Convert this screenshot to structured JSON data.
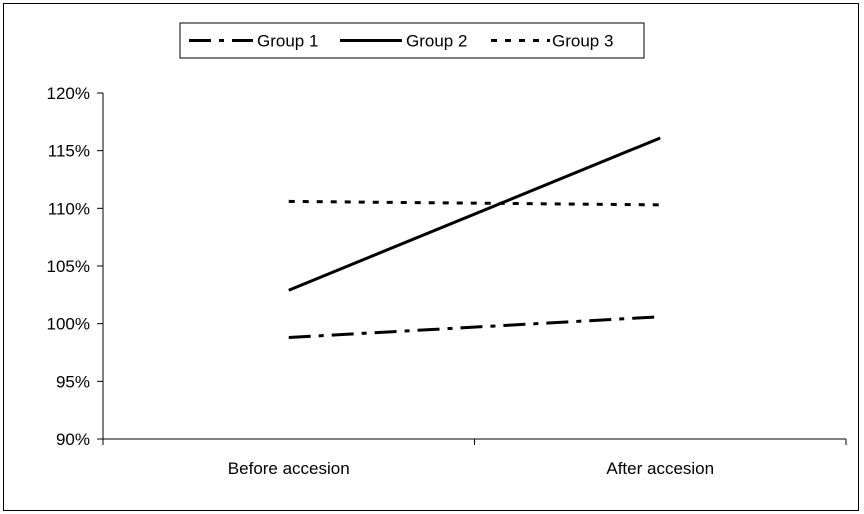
{
  "chart_data": {
    "type": "line",
    "title": "",
    "xlabel": "",
    "ylabel": "",
    "categories": [
      "Before accesion",
      "After accesion"
    ],
    "ylim": [
      0.9,
      1.2
    ],
    "yticks": [
      0.9,
      0.95,
      1.0,
      1.05,
      1.1,
      1.15,
      1.2
    ],
    "ytick_labels": [
      "90%",
      "95%",
      "100%",
      "105%",
      "110%",
      "115%",
      "120%"
    ],
    "grid": false,
    "legend_position": "top",
    "series": [
      {
        "name": "Group 1",
        "values": [
          0.988,
          1.006
        ],
        "style": "dash-dot",
        "color": "#000000"
      },
      {
        "name": "Group 2",
        "values": [
          1.029,
          1.161
        ],
        "style": "solid",
        "color": "#000000"
      },
      {
        "name": "Group 3",
        "values": [
          1.106,
          1.103
        ],
        "style": "dotted",
        "color": "#000000"
      }
    ]
  }
}
